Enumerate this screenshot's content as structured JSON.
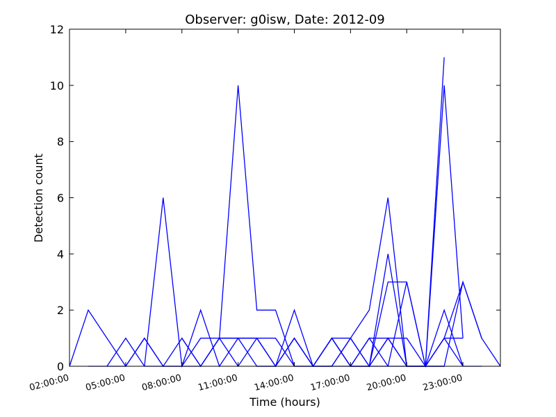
{
  "chart_data": {
    "type": "line",
    "title": "Observer: g0isw, Date: 2012-09",
    "xlabel": "Time (hours)",
    "ylabel": "Detection count",
    "xlim": [
      2,
      25
    ],
    "ylim": [
      0,
      12
    ],
    "grid": false,
    "line_color": "#0000ff",
    "x_ticks": [
      {
        "value": 2,
        "label": "02:00:00"
      },
      {
        "value": 5,
        "label": "05:00:00"
      },
      {
        "value": 8,
        "label": "08:00:00"
      },
      {
        "value": 11,
        "label": "11:00:00"
      },
      {
        "value": 14,
        "label": "14:00:00"
      },
      {
        "value": 17,
        "label": "17:00:00"
      },
      {
        "value": 20,
        "label": "20:00:00"
      },
      {
        "value": 23,
        "label": "23:00:00"
      }
    ],
    "y_ticks": [
      {
        "value": 0,
        "label": "0"
      },
      {
        "value": 2,
        "label": "2"
      },
      {
        "value": 4,
        "label": "4"
      },
      {
        "value": 6,
        "label": "6"
      },
      {
        "value": 8,
        "label": "8"
      },
      {
        "value": 10,
        "label": "10"
      },
      {
        "value": 12,
        "label": "12"
      }
    ],
    "series": [
      {
        "x": [
          2,
          3,
          4,
          5,
          6,
          7,
          8,
          9,
          10,
          11,
          12,
          13,
          14,
          15,
          16,
          17,
          18,
          19,
          20,
          21,
          22,
          23,
          24,
          25
        ],
        "values": [
          0,
          2,
          1,
          0,
          1,
          0,
          0,
          0,
          1,
          1,
          0,
          0,
          1,
          0,
          1,
          0,
          1,
          1,
          0,
          0,
          0,
          3,
          1,
          0
        ]
      },
      {
        "x": [
          3,
          4,
          5,
          6,
          7,
          8,
          9,
          10,
          11,
          12,
          13,
          14,
          15,
          16,
          17,
          18,
          19,
          20,
          21,
          22,
          23,
          24
        ],
        "values": [
          0,
          0,
          0,
          1,
          0,
          1,
          0,
          1,
          1,
          1,
          0,
          1,
          0,
          1,
          0,
          1,
          0,
          0,
          0,
          1,
          0,
          0
        ]
      },
      {
        "x": [
          4,
          5,
          6,
          7,
          8,
          9,
          10,
          11,
          12,
          13,
          14,
          15,
          16,
          17,
          18,
          19,
          20,
          21,
          22,
          23
        ],
        "values": [
          0,
          1,
          0,
          0,
          0,
          2,
          0,
          1,
          1,
          0,
          2,
          0,
          0,
          1,
          0,
          4,
          0,
          0,
          1,
          1
        ]
      },
      {
        "x": [
          6,
          7,
          8,
          9,
          10,
          11,
          12,
          13,
          14,
          15,
          16,
          17,
          18,
          19,
          20,
          21,
          22
        ],
        "values": [
          0,
          6,
          0,
          1,
          1,
          10,
          2,
          2,
          0,
          0,
          1,
          0,
          0,
          3,
          3,
          0,
          11
        ]
      },
      {
        "x": [
          8,
          9,
          10,
          11,
          12,
          13,
          14,
          15,
          16,
          17,
          18,
          19,
          20,
          21,
          22,
          23
        ],
        "values": [
          1,
          0,
          1,
          0,
          1,
          1,
          0,
          0,
          1,
          1,
          0,
          1,
          1,
          0,
          10,
          1
        ]
      },
      {
        "x": [
          12,
          13,
          14,
          15,
          16,
          17,
          18,
          19,
          20,
          21,
          22,
          23,
          24
        ],
        "values": [
          0,
          0,
          1,
          0,
          0,
          1,
          2,
          6,
          0,
          0,
          1,
          3,
          1
        ]
      },
      {
        "x": [
          15,
          16,
          17,
          18,
          19,
          20,
          21,
          22,
          23
        ],
        "values": [
          0,
          0,
          0,
          0,
          1,
          0,
          0,
          2,
          0
        ]
      },
      {
        "x": [
          17,
          18,
          19,
          20,
          21,
          22
        ],
        "values": [
          0,
          0,
          0,
          3,
          0,
          0
        ]
      },
      {
        "x": [
          21,
          22
        ],
        "values": [
          0,
          0
        ]
      }
    ]
  }
}
